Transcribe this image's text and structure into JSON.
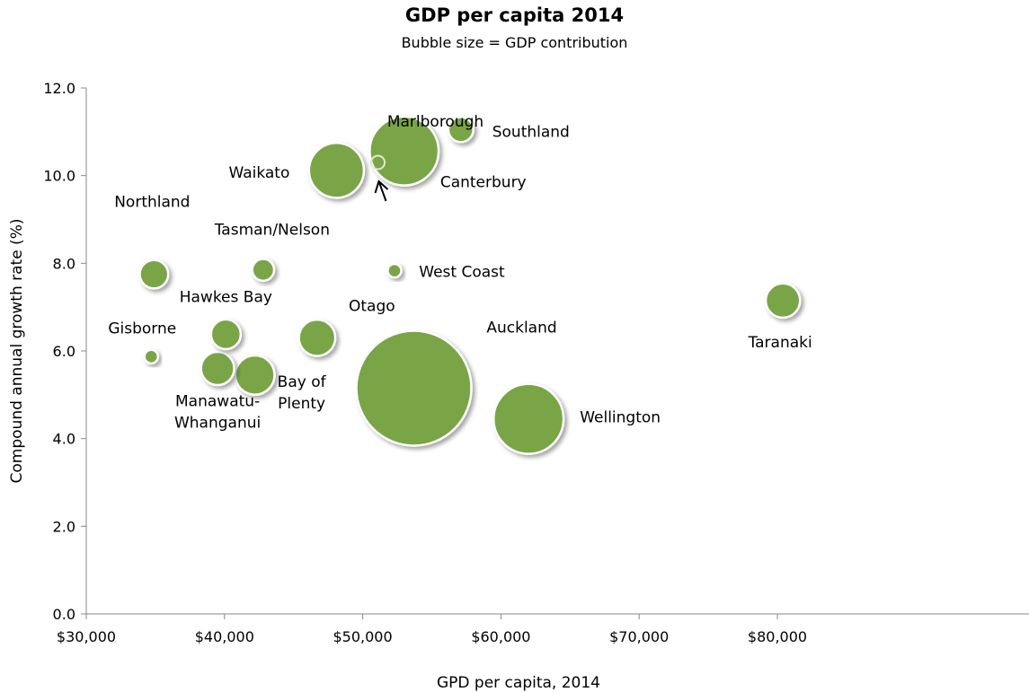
{
  "chart_data": {
    "type": "bubble",
    "title": "GDP per capita 2014",
    "subtitle": "Bubble size = GDP contribution",
    "xlabel": "GPD per capita, 2014",
    "ylabel": "Compound annual growth rate (%)",
    "xlim": [
      30000,
      85000
    ],
    "ylim": [
      0,
      12
    ],
    "x_ticks": [
      30000,
      40000,
      50000,
      60000,
      70000,
      80000
    ],
    "x_tick_labels": [
      "$30,000",
      "$40,000",
      "$50,000",
      "$60,000",
      "$70,000",
      "$80,000"
    ],
    "y_ticks": [
      0,
      2,
      4,
      6,
      8,
      10,
      12
    ],
    "y_tick_labels": [
      "0.0",
      "2.0",
      "4.0",
      "6.0",
      "8.0",
      "10.0",
      "12.0"
    ],
    "grid": false,
    "bubble_color": "#7aa547",
    "points": [
      {
        "name": "Northland",
        "x": 34900,
        "y": 7.75,
        "size": 2.2
      },
      {
        "name": "Gisborne",
        "x": 34700,
        "y": 5.87,
        "size": 0.5
      },
      {
        "name": "Hawkes Bay",
        "x": 40100,
        "y": 6.38,
        "size": 2.4
      },
      {
        "name": "Manawatu-Whanganui",
        "x": 39500,
        "y": 5.6,
        "size": 3.0
      },
      {
        "name": "Bay of Plenty",
        "x": 42200,
        "y": 5.45,
        "size": 4.2
      },
      {
        "name": "Tasman/Nelson",
        "x": 42800,
        "y": 7.85,
        "size": 1.3
      },
      {
        "name": "Otago",
        "x": 46700,
        "y": 6.3,
        "size": 3.6
      },
      {
        "name": "Waikato",
        "x": 48100,
        "y": 10.12,
        "size": 8.2
      },
      {
        "name": "Marlborough",
        "x": 51100,
        "y": 10.3,
        "size": 0.5
      },
      {
        "name": "Canterbury",
        "x": 53000,
        "y": 10.56,
        "size": 12.9
      },
      {
        "name": "West Coast",
        "x": 52300,
        "y": 7.83,
        "size": 0.5
      },
      {
        "name": "Southland",
        "x": 57100,
        "y": 11.05,
        "size": 1.7
      },
      {
        "name": "Auckland",
        "x": 53700,
        "y": 5.15,
        "size": 36.0
      },
      {
        "name": "Wellington",
        "x": 62000,
        "y": 4.45,
        "size": 13.3
      },
      {
        "name": "Taranaki",
        "x": 80400,
        "y": 7.15,
        "size": 3.2
      }
    ]
  }
}
